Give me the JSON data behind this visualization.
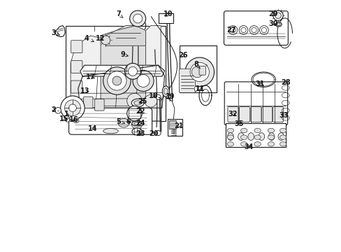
{
  "bg_color": "#ffffff",
  "line_color": "#1a1a1a",
  "figsize": [
    4.89,
    3.6
  ],
  "dpi": 100,
  "labels": {
    "1": [
      0.083,
      0.548,
      0.1,
      0.53
    ],
    "2": [
      0.033,
      0.565,
      0.048,
      0.558
    ],
    "3": [
      0.033,
      0.87,
      0.058,
      0.862
    ],
    "4": [
      0.165,
      0.848,
      0.195,
      0.835
    ],
    "5": [
      0.29,
      0.518,
      0.318,
      0.51
    ],
    "6": [
      0.33,
      0.518,
      0.345,
      0.51
    ],
    "7": [
      0.292,
      0.945,
      0.31,
      0.93
    ],
    "8": [
      0.6,
      0.745,
      0.618,
      0.728
    ],
    "9": [
      0.308,
      0.785,
      0.332,
      0.778
    ],
    "10": [
      0.49,
      0.945,
      0.468,
      0.932
    ],
    "11": [
      0.618,
      0.648,
      0.635,
      0.638
    ],
    "12": [
      0.218,
      0.848,
      0.238,
      0.84
    ],
    "13": [
      0.158,
      0.64,
      0.182,
      0.635
    ],
    "14": [
      0.188,
      0.488,
      0.208,
      0.502
    ],
    "15": [
      0.075,
      0.528,
      0.09,
      0.52
    ],
    "16": [
      0.112,
      0.525,
      0.122,
      0.518
    ],
    "17": [
      0.18,
      0.695,
      0.205,
      0.688
    ],
    "18": [
      0.43,
      0.62,
      0.448,
      0.612
    ],
    "19": [
      0.498,
      0.618,
      0.488,
      0.608
    ],
    "20": [
      0.432,
      0.468,
      0.448,
      0.478
    ],
    "21": [
      0.532,
      0.5,
      0.52,
      0.488
    ],
    "22": [
      0.378,
      0.558,
      0.362,
      0.548
    ],
    "23": [
      0.378,
      0.468,
      0.365,
      0.478
    ],
    "24": [
      0.378,
      0.51,
      0.365,
      0.518
    ],
    "25": [
      0.388,
      0.598,
      0.372,
      0.588
    ],
    "26": [
      0.548,
      0.782,
      0.562,
      0.768
    ],
    "27": [
      0.742,
      0.882,
      0.762,
      0.87
    ],
    "28": [
      0.96,
      0.672,
      0.945,
      0.685
    ],
    "29": [
      0.908,
      0.945,
      0.925,
      0.938
    ],
    "30": [
      0.908,
      0.908,
      0.928,
      0.9
    ],
    "31": [
      0.855,
      0.668,
      0.87,
      0.678
    ],
    "32": [
      0.748,
      0.548,
      0.768,
      0.54
    ],
    "33": [
      0.95,
      0.542,
      0.938,
      0.548
    ],
    "34": [
      0.81,
      0.415,
      0.828,
      0.428
    ],
    "35": [
      0.772,
      0.508,
      0.79,
      0.518
    ]
  }
}
